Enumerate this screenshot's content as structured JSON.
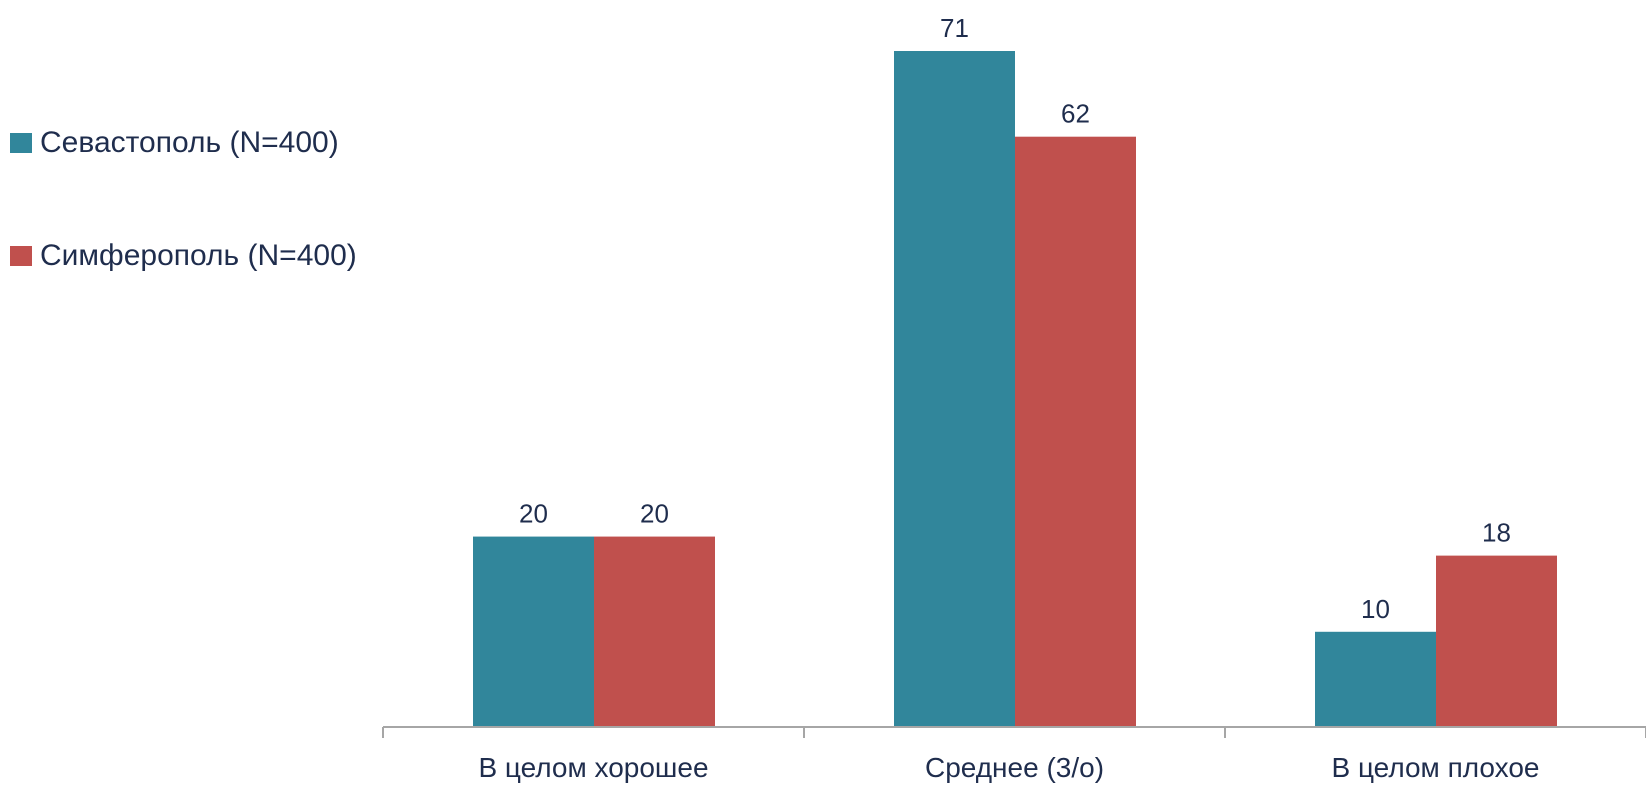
{
  "chart_data": {
    "type": "bar",
    "categories": [
      "В целом хорошее",
      "Среднее (3/о)",
      "В целом плохое"
    ],
    "series": [
      {
        "name": "Севастополь  (N=400)",
        "values": [
          20,
          71,
          10
        ],
        "color": "#31869b"
      },
      {
        "name": "Симферополь (N=400)",
        "values": [
          20,
          62,
          18
        ],
        "color": "#c0504d"
      }
    ],
    "ylim": [
      0,
      71
    ],
    "grid": false,
    "legend_position": "left",
    "data_labels": true
  }
}
